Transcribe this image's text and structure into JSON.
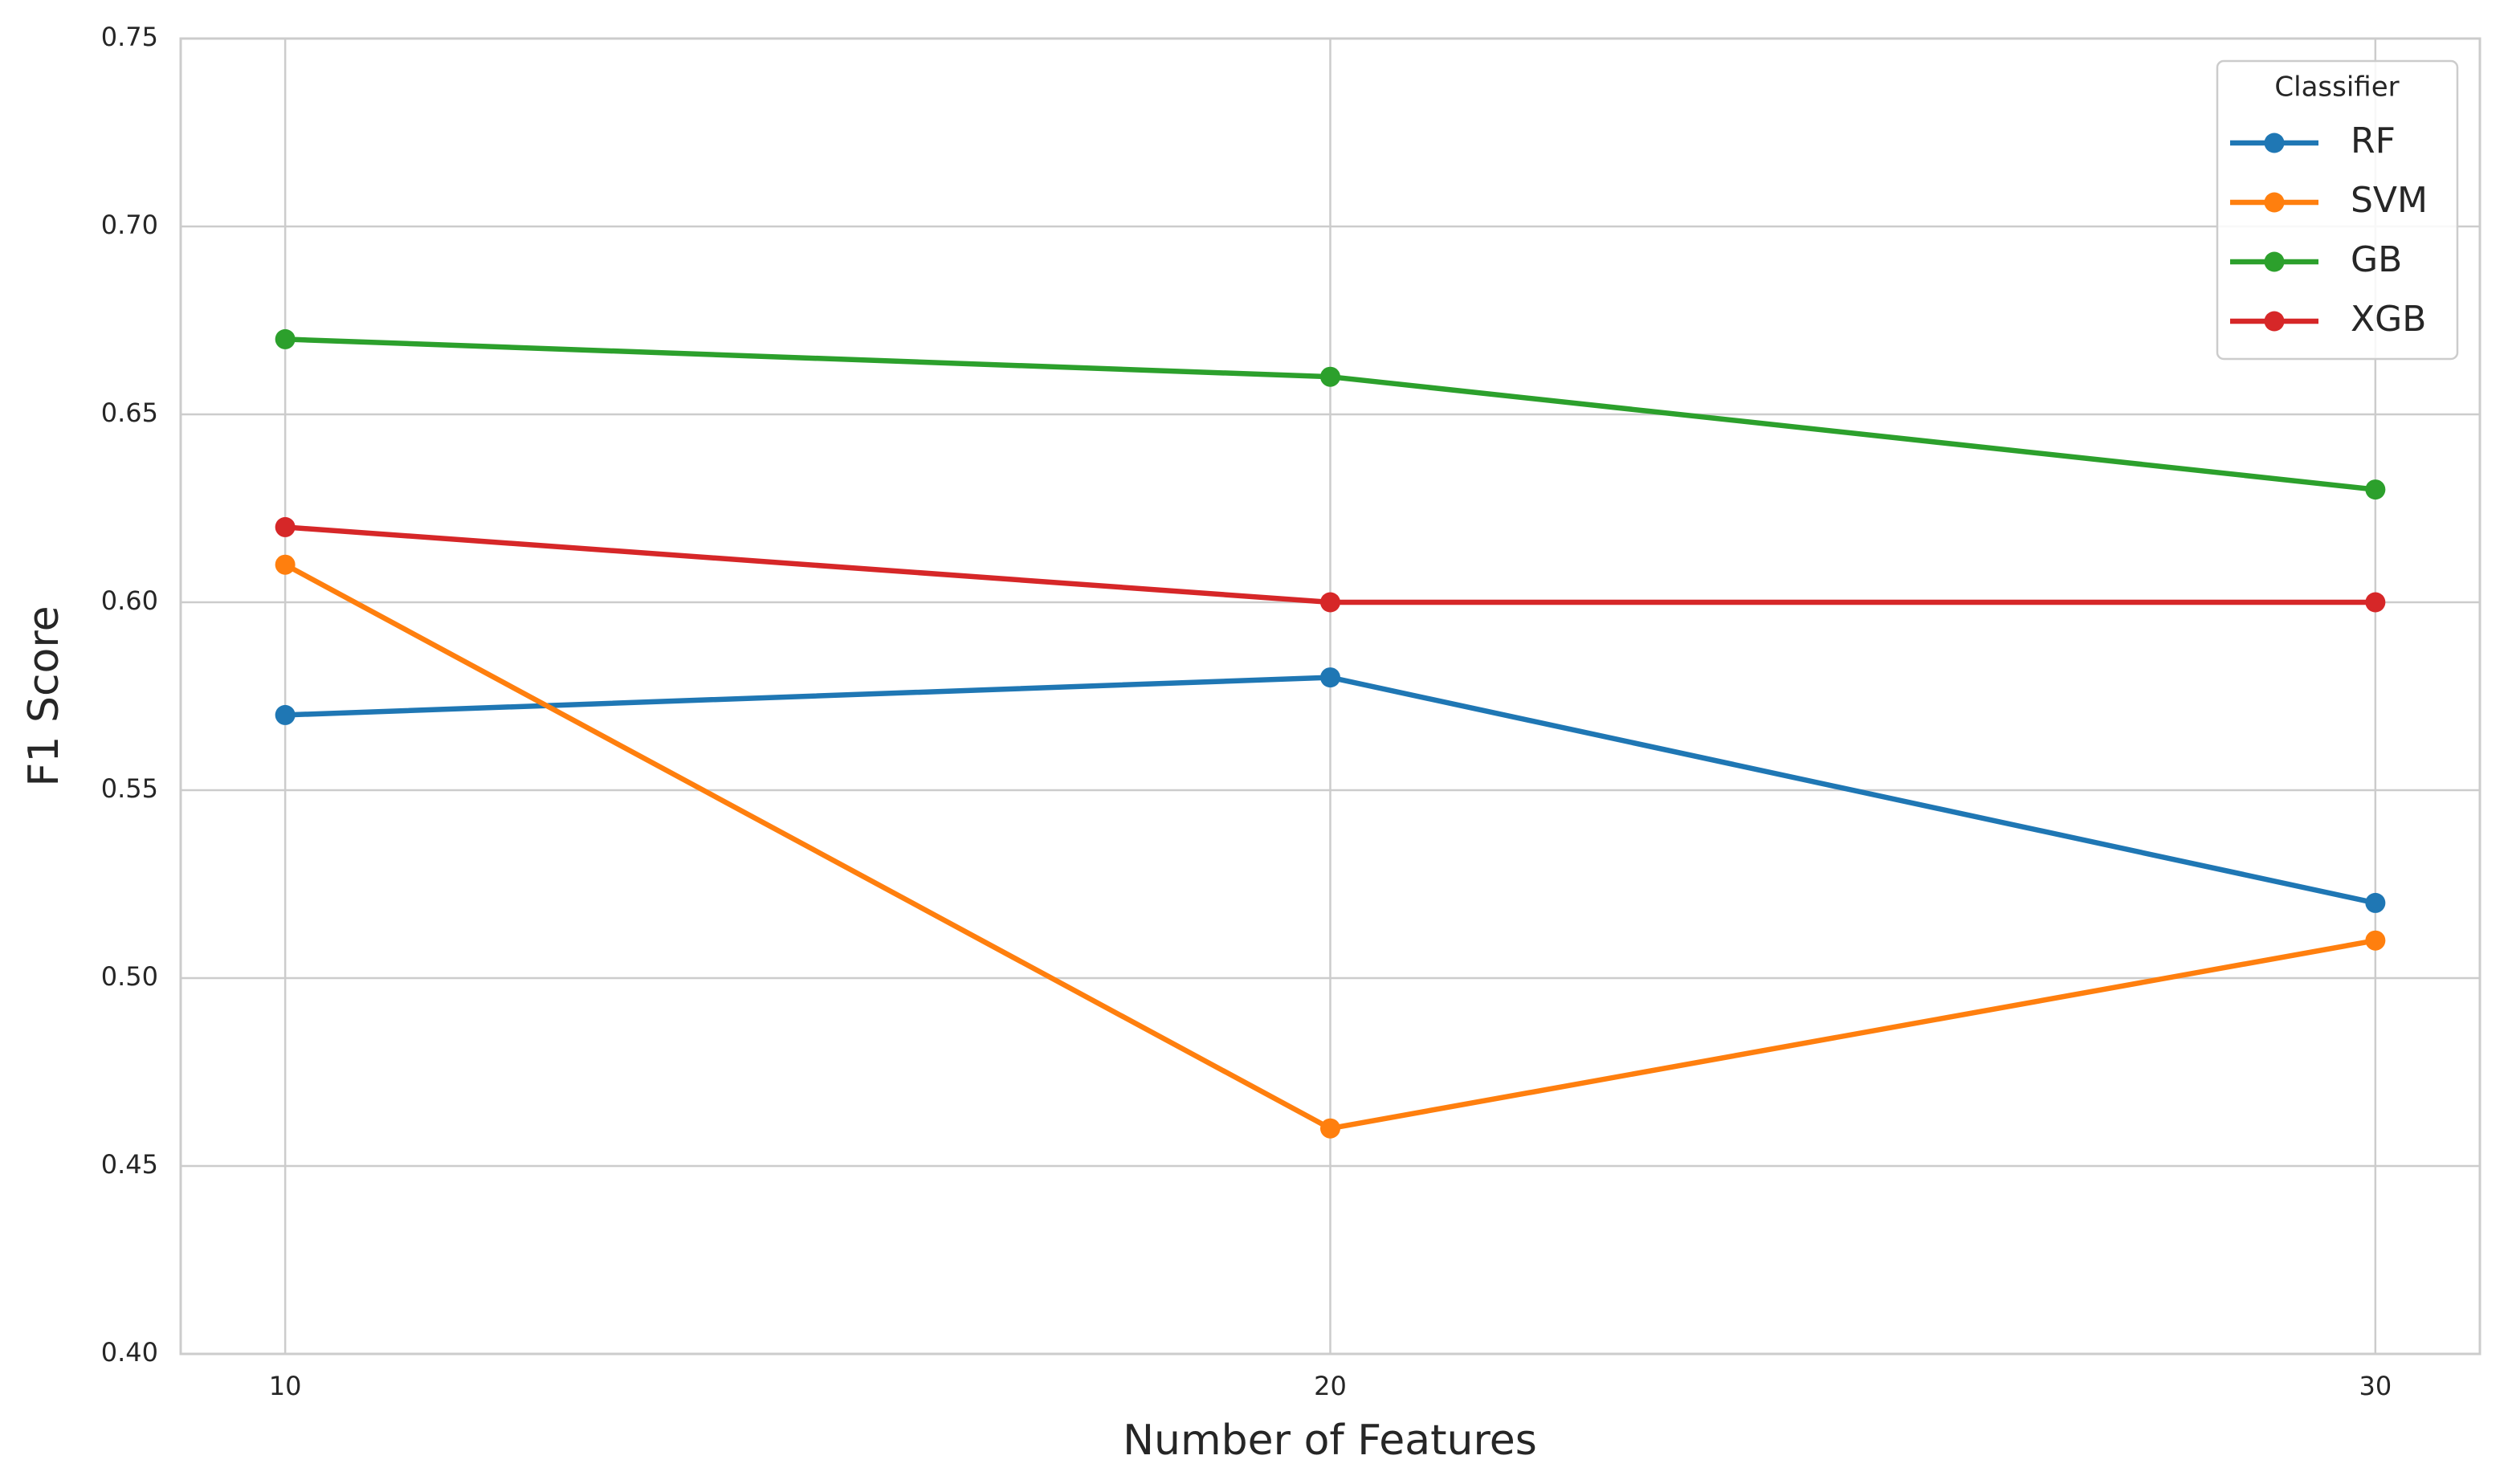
{
  "chart_data": {
    "type": "line",
    "x_label": "Number of Features",
    "y_label": "F1 Score",
    "x": [
      10,
      20,
      30
    ],
    "series": [
      {
        "name": "RF",
        "color": "#1f77b4",
        "values": [
          0.57,
          0.58,
          0.52
        ]
      },
      {
        "name": "SVM",
        "color": "#ff7f0e",
        "values": [
          0.61,
          0.46,
          0.51
        ]
      },
      {
        "name": "GB",
        "color": "#2ca02c",
        "values": [
          0.67,
          0.66,
          0.63
        ]
      },
      {
        "name": "XGB",
        "color": "#d62728",
        "values": [
          0.62,
          0.6,
          0.6
        ]
      }
    ],
    "xlim": [
      9,
      31
    ],
    "ylim": [
      0.4,
      0.75
    ],
    "xticks": [
      10,
      20,
      30
    ],
    "yticks": [
      {
        "value": 0.4,
        "label": "0.40"
      },
      {
        "value": 0.45,
        "label": "0.45"
      },
      {
        "value": 0.5,
        "label": "0.50"
      },
      {
        "value": 0.55,
        "label": "0.55"
      },
      {
        "value": 0.6,
        "label": "0.60"
      },
      {
        "value": 0.65,
        "label": "0.65"
      },
      {
        "value": 0.7,
        "label": "0.70"
      },
      {
        "value": 0.75,
        "label": "0.75"
      }
    ],
    "grid": true,
    "legend_title": "Classifier",
    "legend_position": "upper right"
  }
}
